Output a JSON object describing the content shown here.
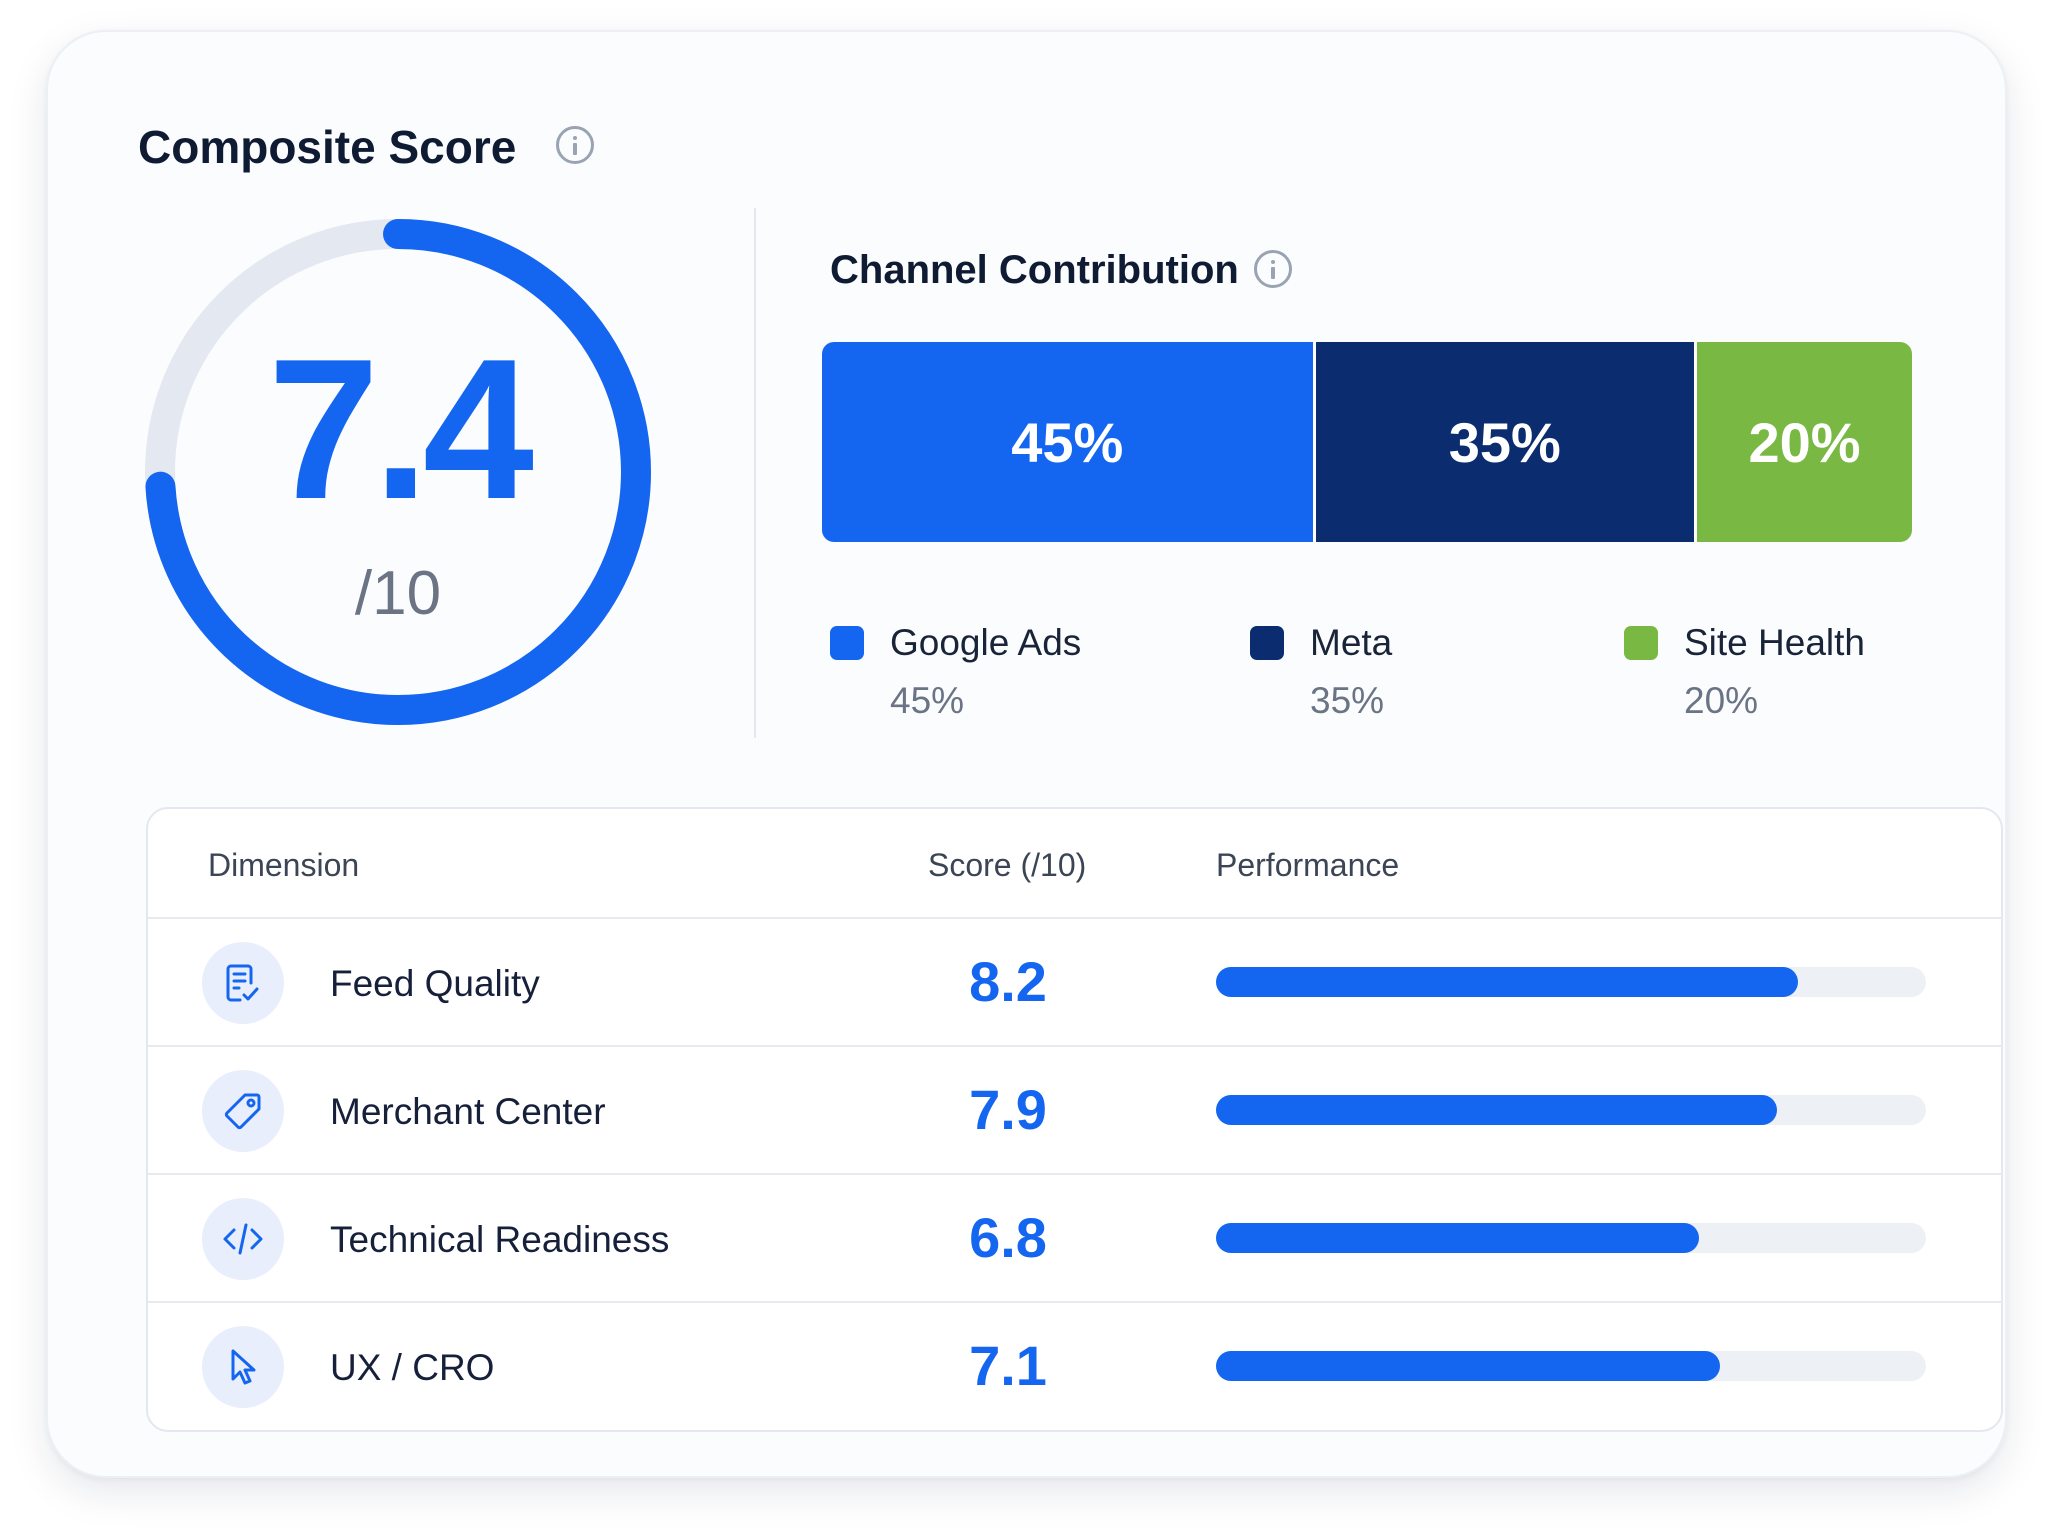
{
  "composite": {
    "title": "Composite Score",
    "info_icon": "info-circle-icon",
    "score": "7.4",
    "score_value": 7.4,
    "max_label": "/10",
    "max_value": 10,
    "accent_color": "#1466f0",
    "track_color": "#e4e8f0"
  },
  "channel": {
    "title": "Channel Contribution",
    "info_icon": "info-circle-icon",
    "segments": [
      {
        "name": "Google Ads",
        "percent": 45,
        "label": "45%",
        "color": "#1466f0"
      },
      {
        "name": "Meta",
        "percent": 35,
        "label": "35%",
        "color": "#0b2c6e"
      },
      {
        "name": "Site Health",
        "percent": 20,
        "label": "20%",
        "color": "#78b843"
      }
    ]
  },
  "table": {
    "headers": {
      "dimension": "Dimension",
      "score": "Score (/10)",
      "performance": "Performance"
    },
    "rows": [
      {
        "icon": "feed-checklist-icon",
        "label": "Feed Quality",
        "score": "8.2",
        "value": 8.2
      },
      {
        "icon": "tag-icon",
        "label": "Merchant Center",
        "score": "7.9",
        "value": 7.9
      },
      {
        "icon": "code-icon",
        "label": "Technical Readiness",
        "score": "6.8",
        "value": 6.8
      },
      {
        "icon": "cursor-pointer-icon",
        "label": "UX / CRO",
        "score": "7.1",
        "value": 7.1
      }
    ]
  }
}
